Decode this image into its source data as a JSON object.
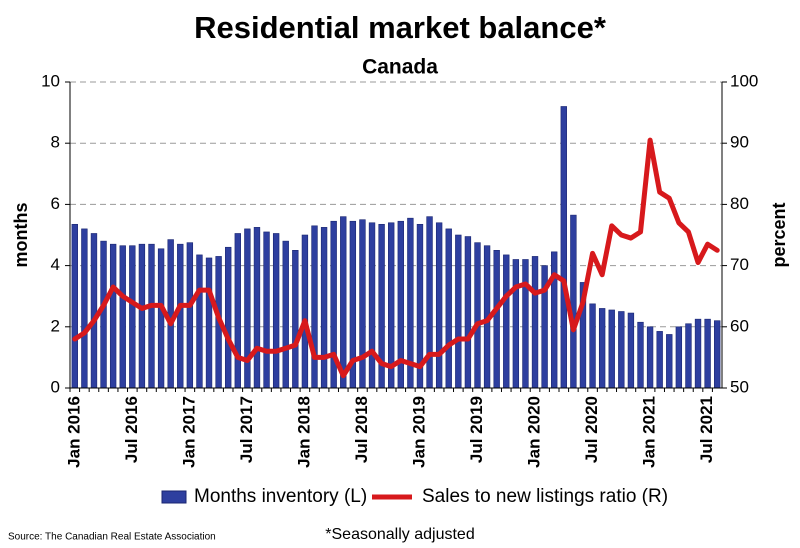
{
  "chart_data": {
    "type": "bar",
    "title": "Residential market balance*",
    "subtitle": "Canada",
    "ylabel": "months",
    "y2label": "percent",
    "source": "Source: The Canadian Real Estate Association",
    "note": "*Seasonally adjusted",
    "categories": [
      "Jan 2016",
      null,
      null,
      null,
      null,
      null,
      "Jul 2016",
      null,
      null,
      null,
      null,
      null,
      "Jan 2017",
      null,
      null,
      null,
      null,
      null,
      "Jul 2017",
      null,
      null,
      null,
      null,
      null,
      "Jan 2018",
      null,
      null,
      null,
      null,
      null,
      "Jul 2018",
      null,
      null,
      null,
      null,
      null,
      "Jan 2019",
      null,
      null,
      null,
      null,
      null,
      "Jul 2019",
      null,
      null,
      null,
      null,
      null,
      "Jan 2020",
      null,
      null,
      null,
      null,
      null,
      "Jul 2020",
      null,
      null,
      null,
      null,
      null,
      "Jan 2021",
      null,
      null,
      null,
      null,
      null,
      "Jul 2021",
      null
    ],
    "series": [
      {
        "name": "Months inventory (L)",
        "type": "bar",
        "color": "#2e3f9f",
        "values": [
          5.35,
          5.2,
          5.05,
          4.8,
          4.7,
          4.65,
          4.65,
          4.7,
          4.7,
          4.55,
          4.85,
          4.7,
          4.75,
          4.35,
          4.25,
          4.3,
          4.6,
          5.05,
          5.2,
          5.25,
          5.1,
          5.05,
          4.8,
          4.5,
          5.0,
          5.3,
          5.25,
          5.45,
          5.6,
          5.45,
          5.5,
          5.4,
          5.35,
          5.4,
          5.45,
          5.55,
          5.35,
          5.6,
          5.4,
          5.2,
          5.0,
          4.95,
          4.75,
          4.65,
          4.5,
          4.35,
          4.2,
          4.2,
          4.3,
          4.0,
          4.45,
          9.2,
          5.65,
          3.45,
          2.75,
          2.6,
          2.55,
          2.5,
          2.45,
          2.15,
          2.0,
          1.85,
          1.75,
          2.0,
          2.1,
          2.25,
          2.25,
          2.2
        ]
      },
      {
        "name": "Sales to new listings ratio (R)",
        "type": "line",
        "axis": "y2",
        "color": "#d7191c",
        "values": [
          58,
          59,
          61,
          63.5,
          66.5,
          65,
          64,
          63,
          63.5,
          63.5,
          60.5,
          63.5,
          63.5,
          66,
          66,
          61.5,
          58,
          55,
          54.5,
          56.5,
          56,
          56,
          56.5,
          57,
          61,
          55,
          55,
          55.5,
          52,
          54.5,
          55,
          56,
          54,
          53.5,
          54.5,
          54,
          53.5,
          55.5,
          55.5,
          57,
          58,
          58,
          60.5,
          61,
          63,
          65,
          66.5,
          67,
          65.5,
          66,
          68.5,
          67.5,
          59.5,
          64,
          72,
          68.5,
          76.5,
          75,
          74.5,
          75.5,
          90.5,
          82,
          81,
          77,
          75.5,
          70.5,
          73.5,
          72.5
        ]
      }
    ],
    "ylim": [
      0,
      10
    ],
    "yticks": [
      0,
      2,
      4,
      6,
      8,
      10
    ],
    "y2lim": [
      50,
      100
    ],
    "y2ticks": [
      50,
      60,
      70,
      80,
      90,
      100
    ],
    "grid": true,
    "legend": "bottom"
  }
}
